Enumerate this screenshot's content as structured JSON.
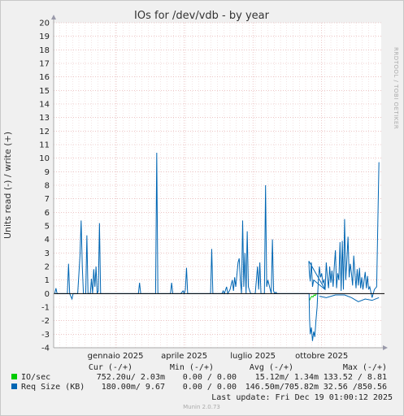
{
  "chart_data": {
    "type": "line",
    "title": "IOs for /dev/vdb - by year",
    "ylabel": "Units read (-) / write (+)",
    "side_label": "RRDTOOL / TOBI OETIKER",
    "ylim": [
      -4,
      20
    ],
    "yticks": [
      -4,
      -3,
      -2,
      -1,
      0,
      1,
      2,
      3,
      4,
      5,
      6,
      7,
      8,
      9,
      10,
      11,
      12,
      13,
      14,
      15,
      16,
      17,
      18,
      19,
      20
    ],
    "xlim": [
      -2.7,
      11.6
    ],
    "xticks": [
      {
        "label": "gennaio 2025",
        "value": 0
      },
      {
        "label": "aprile 2025",
        "value": 3
      },
      {
        "label": "luglio 2025",
        "value": 6
      },
      {
        "label": "ottobre 2025",
        "value": 9
      }
    ],
    "colors": {
      "io_per_sec": "#00cc00",
      "req_size": "#0066b3",
      "grid_major": "#e0a0a0",
      "grid_minor": "#e8c8c8"
    },
    "series": [
      {
        "name": "IO/sec",
        "color": "#00cc00",
        "points": [
          [
            8.47,
            -0.5
          ],
          [
            8.52,
            -0.3
          ],
          [
            8.57,
            -0.2
          ],
          [
            8.62,
            -0.25
          ],
          [
            8.67,
            -0.1
          ],
          [
            8.72,
            -0.15
          ],
          [
            8.77,
            0.0
          ]
        ]
      },
      {
        "name": "Req Size (KB)",
        "color": "#0066b3",
        "points": [
          [
            -2.65,
            0
          ],
          [
            -2.6,
            0.4
          ],
          [
            -2.55,
            0
          ],
          [
            -2.1,
            0
          ],
          [
            -2.05,
            2.2
          ],
          [
            -2.0,
            0
          ],
          [
            -1.95,
            -0.2
          ],
          [
            -1.9,
            -0.4
          ],
          [
            -1.85,
            0
          ],
          [
            -1.65,
            0
          ],
          [
            -1.55,
            2.8
          ],
          [
            -1.5,
            5.4
          ],
          [
            -1.45,
            2.0
          ],
          [
            -1.4,
            0
          ],
          [
            -1.3,
            0
          ],
          [
            -1.25,
            4.3
          ],
          [
            -1.2,
            0
          ],
          [
            -1.1,
            0
          ],
          [
            -1.05,
            1.1
          ],
          [
            -1.0,
            0
          ],
          [
            -0.95,
            1.8
          ],
          [
            -0.9,
            0.5
          ],
          [
            -0.85,
            2.0
          ],
          [
            -0.8,
            0
          ],
          [
            -0.75,
            0.2
          ],
          [
            -0.7,
            5.2
          ],
          [
            -0.65,
            0
          ],
          [
            1.0,
            0
          ],
          [
            1.05,
            0.8
          ],
          [
            1.1,
            0
          ],
          [
            1.75,
            0
          ],
          [
            1.8,
            10.4
          ],
          [
            1.85,
            0
          ],
          [
            2.4,
            0
          ],
          [
            2.45,
            0.8
          ],
          [
            2.5,
            0
          ],
          [
            2.85,
            0
          ],
          [
            2.9,
            0.1
          ],
          [
            2.95,
            0.2
          ],
          [
            3.0,
            0
          ],
          [
            3.05,
            0.3
          ],
          [
            3.1,
            1.9
          ],
          [
            3.15,
            0
          ],
          [
            4.15,
            0
          ],
          [
            4.2,
            3.3
          ],
          [
            4.25,
            0
          ],
          [
            4.65,
            0
          ],
          [
            4.7,
            0.2
          ],
          [
            4.75,
            0
          ],
          [
            4.85,
            0.5
          ],
          [
            4.9,
            0
          ],
          [
            5.0,
            0.3
          ],
          [
            5.1,
            1.0
          ],
          [
            5.15,
            0.2
          ],
          [
            5.2,
            1.2
          ],
          [
            5.25,
            0.5
          ],
          [
            5.35,
            2.3
          ],
          [
            5.4,
            2.6
          ],
          [
            5.45,
            1.0
          ],
          [
            5.5,
            0
          ],
          [
            5.55,
            5.4
          ],
          [
            5.6,
            0.5
          ],
          [
            5.65,
            3.0
          ],
          [
            5.7,
            0
          ],
          [
            5.75,
            4.6
          ],
          [
            5.8,
            0.5
          ],
          [
            5.9,
            0
          ],
          [
            6.1,
            0
          ],
          [
            6.2,
            2.0
          ],
          [
            6.25,
            0.3
          ],
          [
            6.3,
            2.3
          ],
          [
            6.35,
            0
          ],
          [
            6.5,
            0
          ],
          [
            6.55,
            8.0
          ],
          [
            6.6,
            0.5
          ],
          [
            6.65,
            1.0
          ],
          [
            6.8,
            0
          ],
          [
            6.85,
            4.0
          ],
          [
            6.9,
            0.2
          ],
          [
            6.95,
            0
          ],
          [
            7.0,
            0.1
          ],
          [
            7.05,
            0
          ],
          [
            8.45,
            0
          ],
          [
            8.47,
            -1.8
          ],
          [
            8.5,
            -3.0
          ],
          [
            8.55,
            -2.5
          ],
          [
            8.6,
            -3.5
          ],
          [
            8.65,
            -2.8
          ],
          [
            8.7,
            -3.2
          ],
          [
            8.75,
            -2.0
          ],
          [
            8.8,
            -1.0
          ],
          [
            8.85,
            0.8
          ],
          [
            8.9,
            2.0
          ],
          [
            8.95,
            1.2
          ],
          [
            9.0,
            1.5
          ],
          [
            9.05,
            0.8
          ],
          [
            9.1,
            1.0
          ],
          [
            9.15,
            0.3
          ],
          [
            8.44,
            2.4
          ],
          [
            8.46,
            1.6
          ],
          [
            8.5,
            0.9
          ],
          [
            8.55,
            2.3
          ],
          [
            8.6,
            0.5
          ],
          [
            8.65,
            1.0
          ],
          [
            9.15,
            0.3
          ],
          [
            9.2,
            2.3
          ],
          [
            9.25,
            1.2
          ],
          [
            9.3,
            0.4
          ],
          [
            9.35,
            2.0
          ],
          [
            9.4,
            0.8
          ],
          [
            9.45,
            1.7
          ],
          [
            9.5,
            0.5
          ],
          [
            9.55,
            2.0
          ],
          [
            9.6,
            3.2
          ],
          [
            9.65,
            0.4
          ],
          [
            9.7,
            1.5
          ],
          [
            9.75,
            1.0
          ],
          [
            9.8,
            3.8
          ],
          [
            9.85,
            0.2
          ],
          [
            9.9,
            3.9
          ],
          [
            9.95,
            0.3
          ],
          [
            10.0,
            5.5
          ],
          [
            10.05,
            1.0
          ],
          [
            10.1,
            2.5
          ],
          [
            10.15,
            4.2
          ],
          [
            10.2,
            1.2
          ],
          [
            10.25,
            2.2
          ],
          [
            10.3,
            1.5
          ],
          [
            10.35,
            0.6
          ],
          [
            10.4,
            2.8
          ],
          [
            10.45,
            1.5
          ],
          [
            10.5,
            0.4
          ],
          [
            10.55,
            1.8
          ],
          [
            10.6,
            0.6
          ],
          [
            10.65,
            1.9
          ],
          [
            10.7,
            0.4
          ],
          [
            10.75,
            1.2
          ],
          [
            10.8,
            0.3
          ],
          [
            10.9,
            1.6
          ],
          [
            10.95,
            0.4
          ],
          [
            11.0,
            1.3
          ],
          [
            11.05,
            0.3
          ],
          [
            11.1,
            0.5
          ],
          [
            11.2,
            -0.3
          ],
          [
            11.3,
            0.3
          ],
          [
            11.4,
            0.5
          ],
          [
            11.5,
            9.7
          ]
        ],
        "negative_band": [
          [
            8.9,
            -0.2
          ],
          [
            9.2,
            -0.3
          ],
          [
            9.6,
            -0.1
          ],
          [
            10.0,
            -0.1
          ],
          [
            10.3,
            -0.3
          ],
          [
            10.6,
            -0.6
          ],
          [
            10.9,
            -0.4
          ],
          [
            11.2,
            -0.5
          ],
          [
            11.5,
            -0.3
          ]
        ]
      }
    ],
    "legend": {
      "header": {
        "cur": "Cur (-/+)",
        "min": "Min (-/+)",
        "avg": "Avg (-/+)",
        "max": "Max (-/+)"
      },
      "rows": [
        {
          "name": "IO/sec",
          "color": "#00cc00",
          "cur": "752.20u/ 2.03m",
          "min": "0.00 / 0.00",
          "avg": "15.12m/ 1.34m",
          "max": "133.52 / 8.81"
        },
        {
          "name": "Req Size (KB)",
          "color": "#0066b3",
          "cur": "180.00m/ 9.67",
          "min": "0.00 / 0.00",
          "avg": "146.50m/705.82m",
          "max": "32.56 /850.56"
        }
      ]
    },
    "last_update": "Last update: Fri Dec 19 01:00:12 2025",
    "footer": "Munin 2.0.73"
  }
}
